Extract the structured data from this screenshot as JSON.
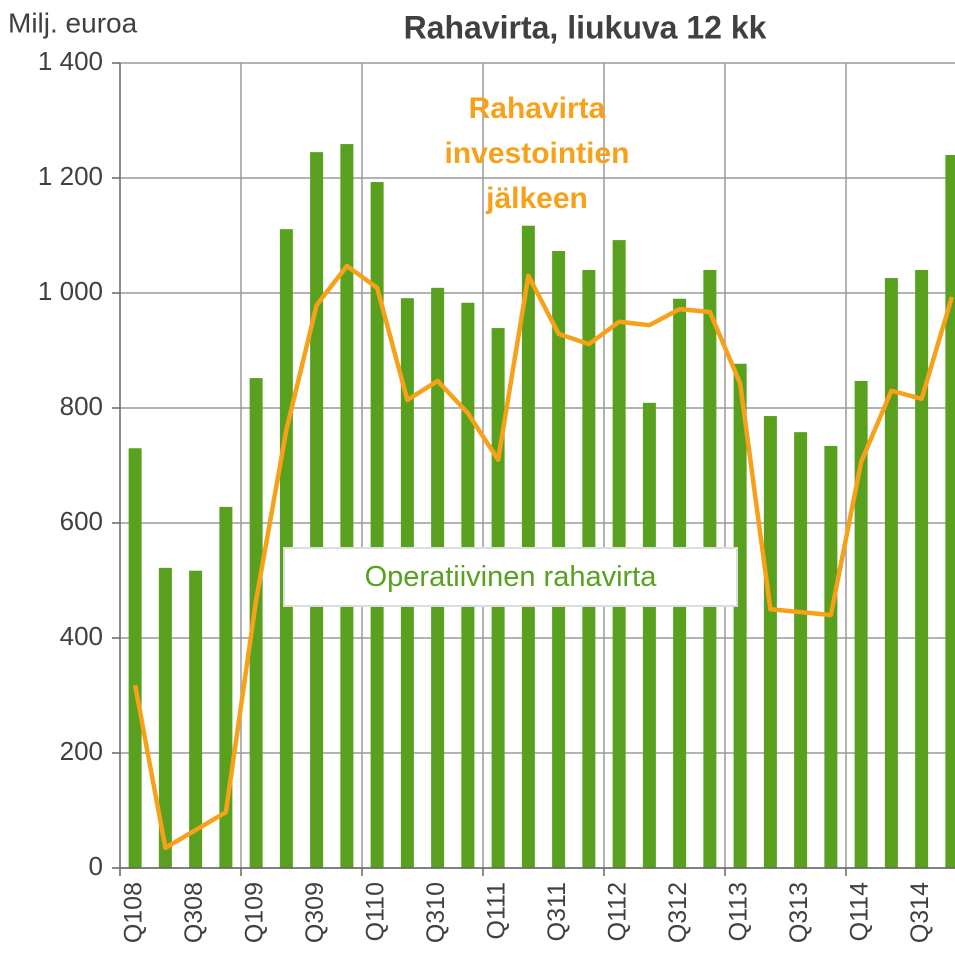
{
  "chart_data": {
    "type": "bar",
    "title": "Rahavirta, liukuva 12 kk",
    "y_label": "Milj. euroa",
    "categories": [
      "Q108",
      null,
      "Q308",
      null,
      "Q109",
      null,
      "Q309",
      null,
      "Q110",
      null,
      "Q310",
      null,
      "Q111",
      null,
      "Q311",
      null,
      "Q112",
      null,
      "Q312",
      null,
      "Q113",
      null,
      "Q313",
      null,
      "Q114",
      null,
      "Q314",
      null
    ],
    "series": [
      {
        "name": "Operatiivinen rahavirta",
        "type": "bar",
        "color": "#58a01e",
        "values": [
          730,
          522,
          517,
          628,
          852,
          1111,
          1245,
          1259,
          1193,
          991,
          1009,
          983,
          939,
          1117,
          1073,
          1040,
          1092,
          809,
          990,
          1040,
          877,
          786,
          758,
          734,
          847,
          1026,
          1040,
          1240
        ]
      },
      {
        "name": "Rahavirta investointien jälkeen",
        "type": "line",
        "color": "#f7a11a",
        "values": [
          318,
          35,
          66,
          97,
          466,
          762,
          979,
          1047,
          1009,
          814,
          847,
          791,
          710,
          1030,
          929,
          911,
          950,
          944,
          972,
          967,
          843,
          450,
          445,
          440,
          706,
          830,
          816,
          993
        ]
      }
    ],
    "ylim": [
      0,
      1400
    ],
    "yticks": [
      0,
      200,
      400,
      600,
      800,
      {
        "value": 1000,
        "label": "1 000"
      },
      {
        "value": 1200,
        "label": "1 200"
      },
      {
        "value": 1400,
        "label": "1 400"
      }
    ],
    "grid": true
  }
}
